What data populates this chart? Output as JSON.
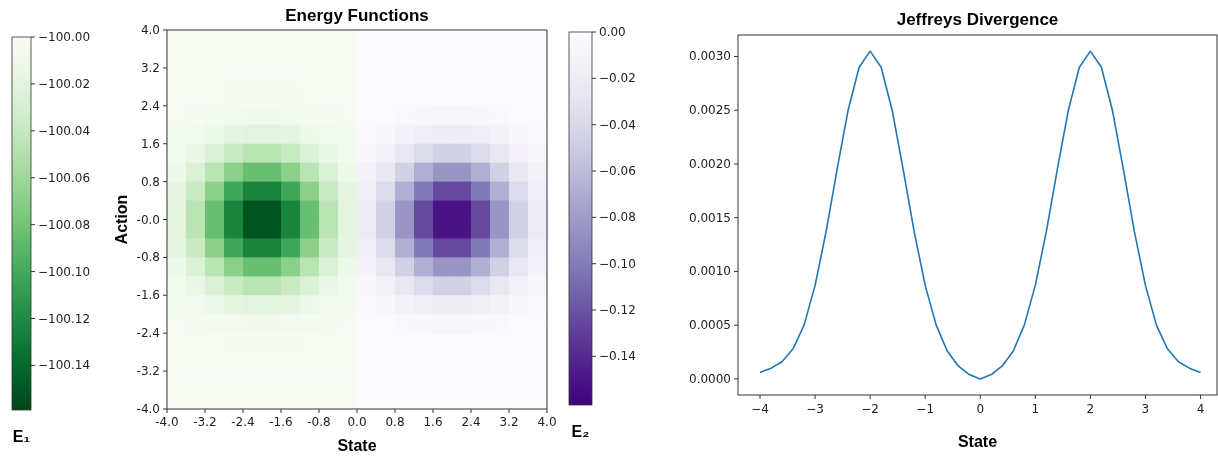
{
  "chart_data": [
    {
      "type": "heatmap",
      "title": "Energy Functions",
      "xlabel": "State",
      "ylabel": "Action",
      "clabel": "E₁",
      "xlim": [
        -4,
        0
      ],
      "xticks": [
        {
          "value": -4,
          "label": "-4.0"
        },
        {
          "value": -3.2,
          "label": "-3.2"
        },
        {
          "value": -2.4,
          "label": "-2.4"
        },
        {
          "value": -1.6,
          "label": "-1.6"
        },
        {
          "value": -0.8,
          "label": "-0.8"
        },
        {
          "value": 0,
          "label": "0.0"
        }
      ],
      "ylim": [
        -4,
        4
      ],
      "yticks": [
        {
          "value": -4,
          "label": "-4.0"
        },
        {
          "value": -3.2,
          "label": "-3.2"
        },
        {
          "value": -2.4,
          "label": "-2.4"
        },
        {
          "value": -1.6,
          "label": "-1.6"
        },
        {
          "value": -0.8,
          "label": "-0.8"
        },
        {
          "value": 0,
          "label": "-0.0"
        },
        {
          "value": 0.8,
          "label": "0.8"
        },
        {
          "value": 1.6,
          "label": "1.6"
        },
        {
          "value": 2.4,
          "label": "2.4"
        },
        {
          "value": 3.2,
          "label": "3.2"
        },
        {
          "value": 4,
          "label": "4.0"
        }
      ],
      "clim": [
        -100.159,
        -100
      ],
      "cticks": [
        {
          "value": -100,
          "label": "−100.00"
        },
        {
          "value": -100.02,
          "label": "−100.02"
        },
        {
          "value": -100.04,
          "label": "−100.04"
        },
        {
          "value": -100.06,
          "label": "−100.06"
        },
        {
          "value": -100.08,
          "label": "−100.08"
        },
        {
          "value": -100.1,
          "label": "−100.10"
        },
        {
          "value": -100.12,
          "label": "−100.12"
        },
        {
          "value": -100.14,
          "label": "−100.14"
        }
      ],
      "cells": [
        [
          -100,
          -100,
          -100,
          -100,
          -100,
          -100,
          -100,
          -100,
          -100,
          -100
        ],
        [
          -100,
          -100,
          -100,
          -100,
          -100,
          -100,
          -100,
          -100,
          -100,
          -100
        ],
        [
          -100,
          -100,
          -100,
          -100.001,
          -100.001,
          -100.001,
          -100.001,
          -100,
          -100,
          -100
        ],
        [
          -100,
          -100.001,
          -100.001,
          -100.002,
          -100.002,
          -100.002,
          -100.002,
          -100.001,
          -100.001,
          -100
        ],
        [
          -100.001,
          -100.002,
          -100.004,
          -100.006,
          -100.008,
          -100.008,
          -100.006,
          -100.004,
          -100.002,
          -100.001
        ],
        [
          -100.003,
          -100.006,
          -100.012,
          -100.017,
          -100.021,
          -100.021,
          -100.017,
          -100.012,
          -100.006,
          -100.003
        ],
        [
          -100.006,
          -100.014,
          -100.026,
          -100.038,
          -100.046,
          -100.046,
          -100.038,
          -100.026,
          -100.014,
          -100.006
        ],
        [
          -100.012,
          -100.026,
          -100.046,
          -100.069,
          -100.084,
          -100.084,
          -100.069,
          -100.046,
          -100.026,
          -100.012
        ],
        [
          -100.017,
          -100.038,
          -100.069,
          -100.102,
          -100.124,
          -100.124,
          -100.102,
          -100.069,
          -100.038,
          -100.017
        ],
        [
          -100.021,
          -100.046,
          -100.084,
          -100.124,
          -100.151,
          -100.151,
          -100.124,
          -100.084,
          -100.046,
          -100.021
        ],
        [
          -100.021,
          -100.046,
          -100.084,
          -100.124,
          -100.151,
          -100.151,
          -100.124,
          -100.084,
          -100.046,
          -100.021
        ],
        [
          -100.017,
          -100.038,
          -100.069,
          -100.102,
          -100.124,
          -100.124,
          -100.102,
          -100.069,
          -100.038,
          -100.017
        ],
        [
          -100.012,
          -100.026,
          -100.046,
          -100.069,
          -100.084,
          -100.084,
          -100.069,
          -100.046,
          -100.026,
          -100.012
        ],
        [
          -100.006,
          -100.014,
          -100.026,
          -100.038,
          -100.046,
          -100.046,
          -100.038,
          -100.026,
          -100.014,
          -100.006
        ],
        [
          -100.003,
          -100.006,
          -100.012,
          -100.017,
          -100.021,
          -100.021,
          -100.017,
          -100.012,
          -100.006,
          -100.003
        ],
        [
          -100.001,
          -100.002,
          -100.004,
          -100.006,
          -100.008,
          -100.008,
          -100.006,
          -100.004,
          -100.002,
          -100.001
        ],
        [
          -100,
          -100.001,
          -100.001,
          -100.002,
          -100.002,
          -100.002,
          -100.002,
          -100.001,
          -100.001,
          -100
        ],
        [
          -100,
          -100,
          -100,
          -100.001,
          -100.001,
          -100.001,
          -100.001,
          -100,
          -100,
          -100
        ],
        [
          -100,
          -100,
          -100,
          -100,
          -100,
          -100,
          -100,
          -100,
          -100,
          -100
        ],
        [
          -100,
          -100,
          -100,
          -100,
          -100,
          -100,
          -100,
          -100,
          -100,
          -100
        ]
      ]
    },
    {
      "type": "heatmap",
      "clabel": "E₂",
      "tick_labels": "x",
      "xlim": [
        0,
        4
      ],
      "xticks": [
        {
          "value": 0.8,
          "label": "0.8"
        },
        {
          "value": 1.6,
          "label": "1.6"
        },
        {
          "value": 2.4,
          "label": "2.4"
        },
        {
          "value": 3.2,
          "label": "3.2"
        },
        {
          "value": 4,
          "label": "4.0"
        }
      ],
      "ylim": [
        -4,
        4
      ],
      "clim": [
        -0.161,
        0
      ],
      "cticks": [
        {
          "value": 0,
          "label": "0.00"
        },
        {
          "value": -0.02,
          "label": "−0.02"
        },
        {
          "value": -0.04,
          "label": "−0.04"
        },
        {
          "value": -0.06,
          "label": "−0.06"
        },
        {
          "value": -0.08,
          "label": "−0.08"
        },
        {
          "value": -0.1,
          "label": "−0.10"
        },
        {
          "value": -0.12,
          "label": "−0.12"
        },
        {
          "value": -0.14,
          "label": "−0.14"
        }
      ],
      "cells": [
        [
          0,
          0,
          0,
          0,
          0,
          0,
          0,
          0,
          0,
          0
        ],
        [
          0,
          0,
          0,
          0,
          0,
          0,
          0,
          0,
          0,
          0
        ],
        [
          0,
          0,
          0,
          -0.001,
          -0.001,
          -0.001,
          -0.001,
          0,
          0,
          0
        ],
        [
          0,
          -0.001,
          -0.001,
          -0.002,
          -0.002,
          -0.002,
          -0.002,
          -0.001,
          -0.001,
          0
        ],
        [
          -0.001,
          -0.002,
          -0.004,
          -0.006,
          -0.008,
          -0.008,
          -0.006,
          -0.004,
          -0.002,
          -0.001
        ],
        [
          -0.003,
          -0.006,
          -0.012,
          -0.017,
          -0.021,
          -0.021,
          -0.017,
          -0.012,
          -0.006,
          -0.003
        ],
        [
          -0.006,
          -0.014,
          -0.026,
          -0.038,
          -0.046,
          -0.046,
          -0.038,
          -0.026,
          -0.014,
          -0.006
        ],
        [
          -0.012,
          -0.026,
          -0.046,
          -0.069,
          -0.084,
          -0.084,
          -0.069,
          -0.046,
          -0.026,
          -0.012
        ],
        [
          -0.017,
          -0.038,
          -0.069,
          -0.102,
          -0.124,
          -0.124,
          -0.102,
          -0.069,
          -0.038,
          -0.017
        ],
        [
          -0.021,
          -0.046,
          -0.084,
          -0.124,
          -0.151,
          -0.151,
          -0.124,
          -0.084,
          -0.046,
          -0.021
        ],
        [
          -0.021,
          -0.046,
          -0.084,
          -0.124,
          -0.151,
          -0.151,
          -0.124,
          -0.084,
          -0.046,
          -0.021
        ],
        [
          -0.017,
          -0.038,
          -0.069,
          -0.102,
          -0.124,
          -0.124,
          -0.102,
          -0.069,
          -0.038,
          -0.017
        ],
        [
          -0.012,
          -0.026,
          -0.046,
          -0.069,
          -0.084,
          -0.084,
          -0.069,
          -0.046,
          -0.026,
          -0.012
        ],
        [
          -0.006,
          -0.014,
          -0.026,
          -0.038,
          -0.046,
          -0.046,
          -0.038,
          -0.026,
          -0.014,
          -0.006
        ],
        [
          -0.003,
          -0.006,
          -0.012,
          -0.017,
          -0.021,
          -0.021,
          -0.017,
          -0.012,
          -0.006,
          -0.003
        ],
        [
          -0.001,
          -0.002,
          -0.004,
          -0.006,
          -0.008,
          -0.008,
          -0.006,
          -0.004,
          -0.002,
          -0.001
        ],
        [
          0,
          -0.001,
          -0.001,
          -0.002,
          -0.002,
          -0.002,
          -0.002,
          -0.001,
          -0.001,
          0
        ],
        [
          0,
          0,
          0,
          -0.001,
          -0.001,
          -0.001,
          -0.001,
          0,
          0,
          0
        ],
        [
          0,
          0,
          0,
          0,
          0,
          0,
          0,
          0,
          0,
          0
        ],
        [
          0,
          0,
          0,
          0,
          0,
          0,
          0,
          0,
          0,
          0
        ]
      ]
    },
    {
      "type": "line",
      "title": "Jeffreys Divergence",
      "xlabel": "State",
      "x": [
        -4,
        -3.8,
        -3.6,
        -3.4,
        -3.2,
        -3,
        -2.8,
        -2.6,
        -2.4,
        -2.2,
        -2,
        -1.8,
        -1.6,
        -1.4,
        -1.2,
        -1,
        -0.8,
        -0.6,
        -0.4,
        -0.2,
        0,
        0.2,
        0.4,
        0.6,
        0.8,
        1,
        1.2,
        1.4,
        1.6,
        1.8,
        2,
        2.2,
        2.4,
        2.6,
        2.8,
        3,
        3.2,
        3.4,
        3.6,
        3.8,
        4
      ],
      "xlim": [
        -4.4,
        4.3
      ],
      "xticks": [
        {
          "value": -4,
          "label": "−4"
        },
        {
          "value": -3,
          "label": "−3"
        },
        {
          "value": -2,
          "label": "−2"
        },
        {
          "value": -1,
          "label": "−1"
        },
        0,
        1,
        2,
        3,
        4
      ],
      "ylim": [
        -0.00015,
        0.0032
      ],
      "yticks": [
        {
          "value": 0,
          "label": "0.0000"
        },
        {
          "value": 0.0005,
          "label": "0.0005"
        },
        {
          "value": 0.001,
          "label": "0.0010"
        },
        {
          "value": 0.0015,
          "label": "0.0015"
        },
        {
          "value": 0.002,
          "label": "0.0020"
        },
        {
          "value": 0.0025,
          "label": "0.0025"
        },
        {
          "value": 0.003,
          "label": "0.0030"
        }
      ],
      "series": [
        {
          "color": "#1f77b4",
          "values": [
            6e-05,
            0.0001,
            0.00016,
            0.00028,
            0.0005,
            0.00087,
            0.00137,
            0.00195,
            0.0025,
            0.0029,
            0.00305,
            0.0029,
            0.0025,
            0.00195,
            0.00137,
            0.00087,
            0.0005,
            0.00026,
            0.00012,
            4e-05,
            0,
            4e-05,
            0.00012,
            0.00026,
            0.0005,
            0.00087,
            0.00137,
            0.00195,
            0.0025,
            0.0029,
            0.00305,
            0.0029,
            0.0025,
            0.00195,
            0.00137,
            0.00087,
            0.0005,
            0.00028,
            0.00016,
            0.0001,
            6e-05
          ]
        }
      ]
    }
  ]
}
